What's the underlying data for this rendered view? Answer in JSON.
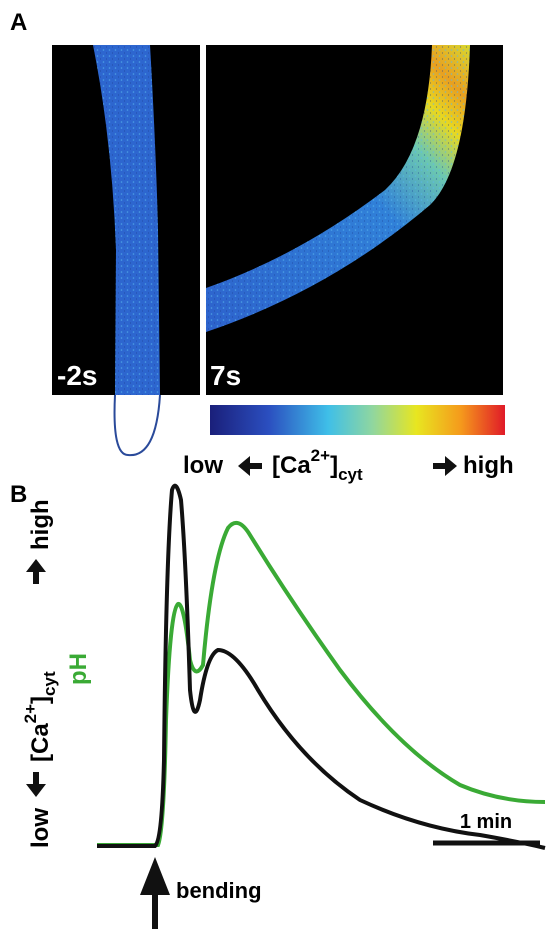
{
  "panel_a": {
    "label": "A",
    "frames": [
      {
        "time": "-2s"
      },
      {
        "time": "7s"
      }
    ],
    "colorbar": {
      "low": "low",
      "high": "high",
      "quantity": {
        "open": "[Ca",
        "sup": "2+",
        "close": "]",
        "sub": "cyt"
      }
    }
  },
  "panel_b": {
    "label": "B",
    "y_axis": {
      "low": "low",
      "high": "high",
      "quantity": {
        "open": "[Ca",
        "sup": "2+",
        "close": "]",
        "sub": "cyt"
      },
      "ph": "pH"
    },
    "scale_bar": "1 min",
    "stimulus": "bending"
  }
}
